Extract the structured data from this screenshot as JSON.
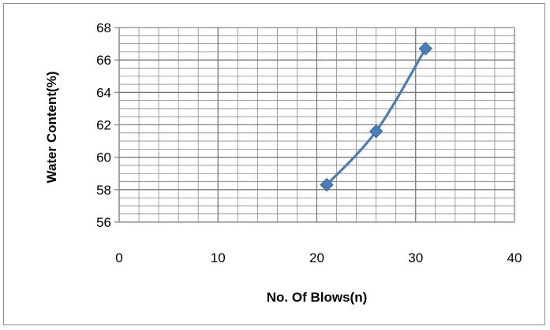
{
  "chart_data": {
    "type": "scatter",
    "title": "",
    "xlabel": "No. Of Blows(n)",
    "ylabel": "Water Content(%)",
    "xlim": [
      0,
      40
    ],
    "ylim": [
      56,
      68
    ],
    "x_ticks": [
      0,
      10,
      20,
      30,
      40
    ],
    "y_ticks": [
      56,
      58,
      60,
      62,
      64,
      66,
      68
    ],
    "x_tick_labels": [
      "0",
      "10",
      "20",
      "30",
      "40"
    ],
    "y_tick_labels": [
      "56",
      "58",
      "60",
      "62",
      "64",
      "66",
      "68"
    ],
    "grid": true,
    "legend": "none",
    "smooth_line": true,
    "marker": "diamond",
    "series": [
      {
        "color": "#4a7ebb",
        "x": [
          21,
          26,
          31
        ],
        "y": [
          58.3,
          61.6,
          66.7
        ]
      }
    ]
  }
}
